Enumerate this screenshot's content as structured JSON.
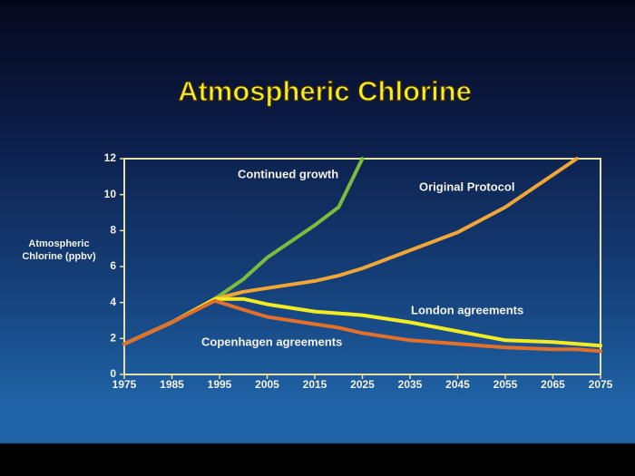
{
  "chart_data": {
    "type": "line",
    "title": "Atmospheric Chlorine",
    "y_label": "Atmospheric Chlorine (ppbv)",
    "x": [
      1975,
      1985,
      1994,
      2000,
      2005,
      2015,
      2020,
      2025,
      2035,
      2045,
      2055,
      2065,
      2070,
      2075
    ],
    "series": [
      {
        "name": "Continued growth",
        "color": "#7cbb3c",
        "values": [
          1.7,
          2.9,
          4.2,
          5.3,
          6.5,
          8.3,
          9.3,
          12,
          null,
          null,
          null,
          null,
          null,
          null
        ]
      },
      {
        "name": "Original Protocol",
        "color": "#f2a636",
        "values": [
          1.7,
          2.9,
          4.2,
          4.6,
          4.8,
          5.2,
          5.5,
          5.9,
          6.9,
          7.9,
          9.3,
          11.1,
          12,
          null
        ]
      },
      {
        "name": "London agreements",
        "color": "#f4ec22",
        "values": [
          1.7,
          2.9,
          4.2,
          4.2,
          3.9,
          3.5,
          3.4,
          3.3,
          2.9,
          2.4,
          1.9,
          1.8,
          1.7,
          1.6
        ]
      },
      {
        "name": "Copenhagen agreements",
        "color": "#e2702a",
        "values": [
          1.7,
          2.9,
          4.1,
          3.6,
          3.2,
          2.8,
          2.6,
          2.3,
          1.9,
          1.7,
          1.5,
          1.4,
          1.4,
          1.3
        ]
      }
    ],
    "xlim": [
      1975,
      2075
    ],
    "xticks": [
      1975,
      1985,
      1995,
      2005,
      2015,
      2025,
      2035,
      2045,
      2055,
      2065,
      2075
    ],
    "ylim": [
      0,
      12
    ],
    "yticks": [
      0,
      2,
      4,
      6,
      8,
      10,
      12
    ]
  }
}
